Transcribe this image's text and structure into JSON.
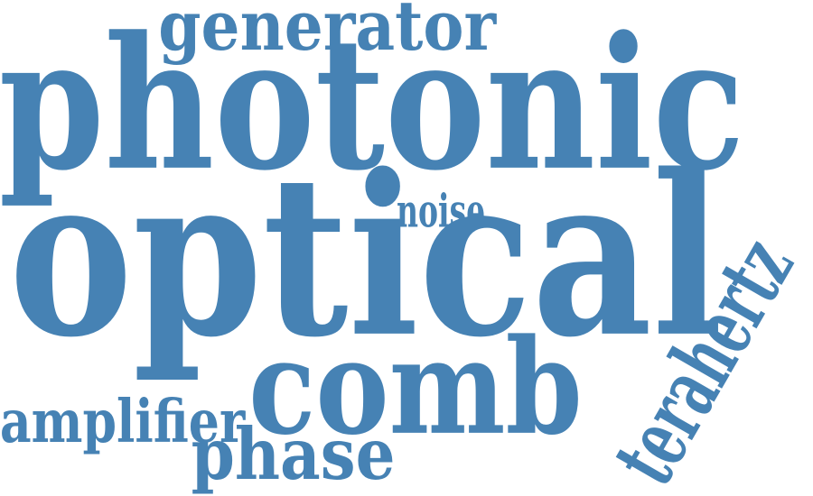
{
  "word_cloud": {
    "color": "#4682b4",
    "words": {
      "generator": "generator",
      "photonic": "photonic",
      "noise": "noise",
      "optical": "optical",
      "comb": "comb",
      "amplifier": "amplifier",
      "phase": "phase",
      "terahertz": "terahertz"
    }
  }
}
